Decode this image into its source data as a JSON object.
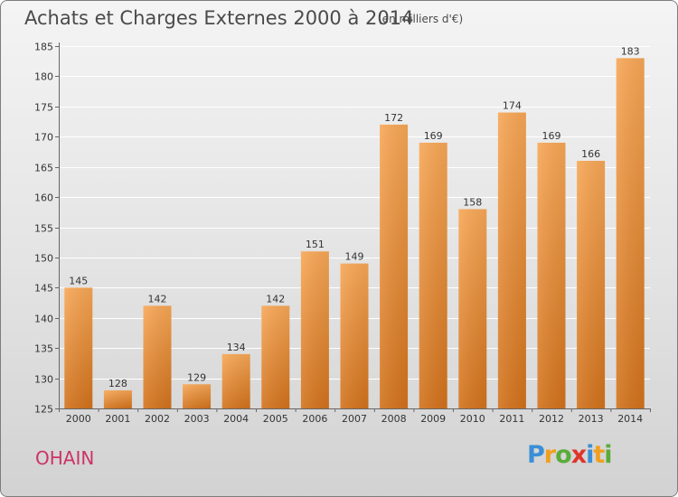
{
  "header": {
    "title": "Achats et Charges Externes 2000 à 2014",
    "subtitle": "(en milliers d'€)"
  },
  "footer": {
    "commune": "OHAIN",
    "logo_text": "Proxiti"
  },
  "colors": {
    "bar_light": "#f7a756",
    "bar_dark": "#d2721c",
    "commune": "#cc3366"
  },
  "chart_data": {
    "type": "bar",
    "title": "Achats et Charges Externes 2000 à 2014",
    "subtitle": "(en milliers d'€)",
    "xlabel": "",
    "ylabel": "",
    "categories": [
      "2000",
      "2001",
      "2002",
      "2003",
      "2004",
      "2005",
      "2006",
      "2007",
      "2008",
      "2009",
      "2010",
      "2011",
      "2012",
      "2013",
      "2014"
    ],
    "values": [
      145,
      128,
      142,
      129,
      134,
      142,
      151,
      149,
      172,
      169,
      158,
      174,
      169,
      166,
      183
    ],
    "ylim": [
      125,
      185
    ],
    "yticks": [
      125,
      130,
      135,
      140,
      145,
      150,
      155,
      160,
      165,
      170,
      175,
      180,
      185
    ],
    "grid": true,
    "legend": "none"
  }
}
